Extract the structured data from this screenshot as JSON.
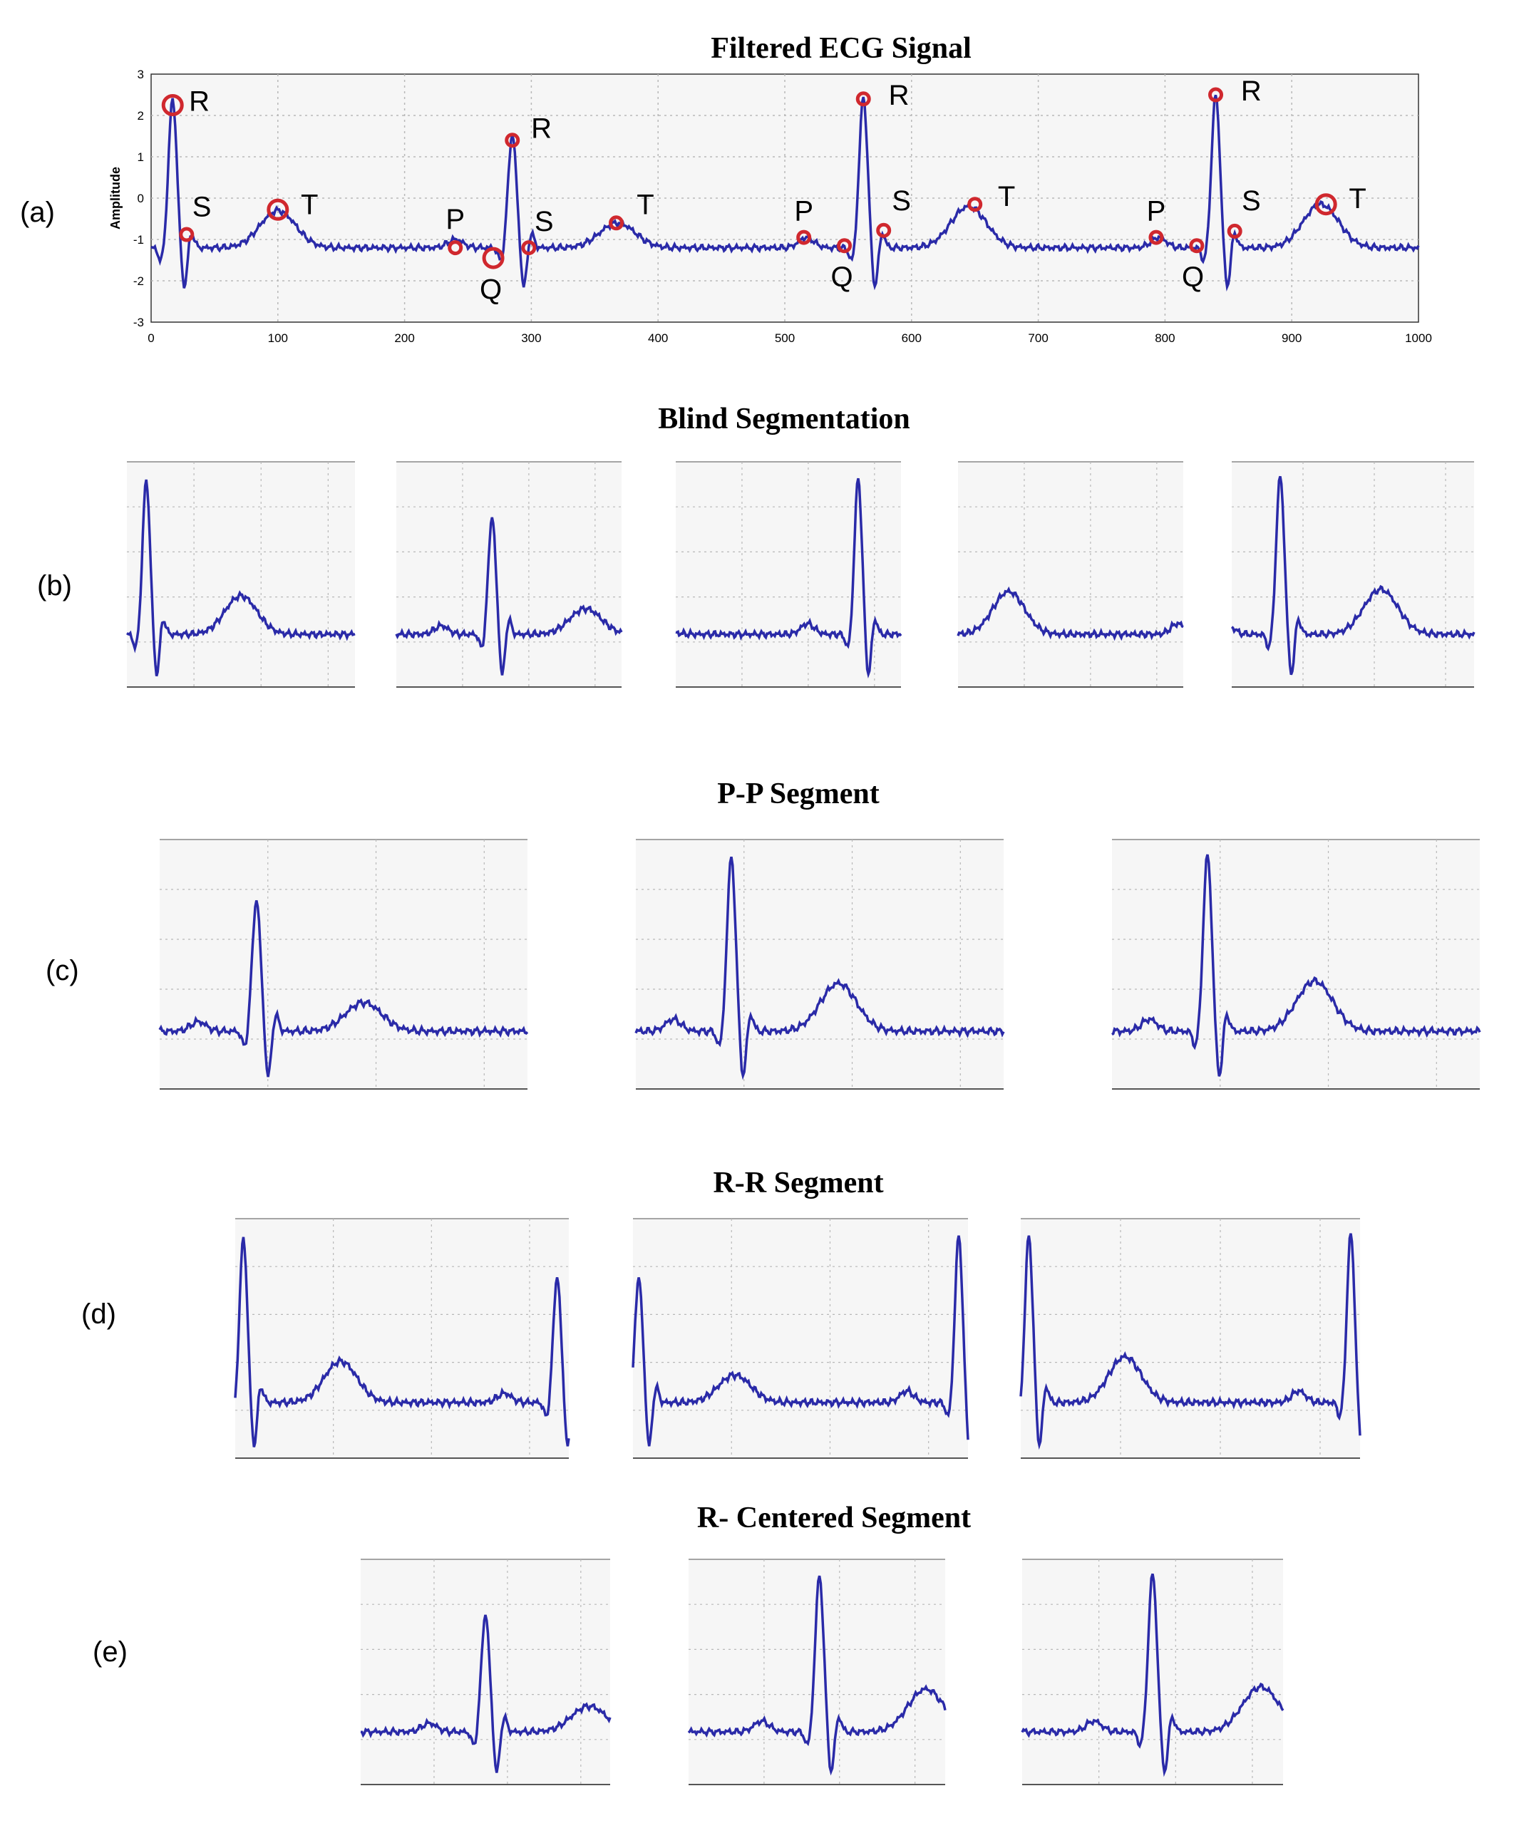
{
  "panel_labels": {
    "a": "(a)",
    "b": "(b)",
    "c": "(c)",
    "d": "(d)",
    "e": "(e)"
  },
  "titles": {
    "a": "Filtered ECG Signal",
    "b": "Blind Segmentation",
    "c": "P-P Segment",
    "d": "R-R Segment",
    "e": "R- Centered Segment"
  },
  "colors": {
    "signal": "#2a2aa8",
    "marker": "#d0282e",
    "grid": "#b8b8b8",
    "plot_bg": "#f6f6f6"
  },
  "chart_data": [
    {
      "id": "a",
      "type": "line",
      "title": "Filtered ECG Signal",
      "xlabel": "",
      "ylabel": "Amplitude",
      "xlim": [
        0,
        1000
      ],
      "ylim": [
        -3,
        3
      ],
      "xticks": [
        0,
        100,
        200,
        300,
        400,
        500,
        600,
        700,
        800,
        900,
        1000
      ],
      "yticks": [
        3,
        2,
        1,
        0,
        -1,
        -2,
        -3
      ],
      "grid": true,
      "beats": [
        {
          "r": 17,
          "amp": 3.6,
          "t_amp": 0.9,
          "p_amp": 0.2
        },
        {
          "r": 285,
          "amp": 2.75,
          "t_amp": 0.6,
          "p_amp": 0.2
        },
        {
          "r": 562,
          "amp": 3.65,
          "t_amp": 1.0,
          "p_amp": 0.25
        },
        {
          "r": 840,
          "amp": 3.7,
          "t_amp": 1.05,
          "p_amp": 0.25
        }
      ],
      "annotations": [
        {
          "label": "R",
          "x": 17,
          "y": 2.25,
          "marker": "circle-large",
          "lx": 38,
          "ly": 2.35
        },
        {
          "label": "S",
          "x": 28,
          "y": -0.88,
          "marker": "circle-small",
          "lx": 40,
          "ly": -0.2
        },
        {
          "label": "T",
          "x": 100,
          "y": -0.28,
          "marker": "circle-large",
          "lx": 125,
          "ly": -0.15
        },
        {
          "label": "P",
          "x": 240,
          "y": -1.2,
          "marker": "circle-small",
          "lx": 240,
          "ly": -0.5
        },
        {
          "label": "Q",
          "x": 270,
          "y": -1.45,
          "marker": "circle-large",
          "lx": 268,
          "ly": -2.2
        },
        {
          "label": "R",
          "x": 285,
          "y": 1.4,
          "marker": "circle-small",
          "lx": 308,
          "ly": 1.7
        },
        {
          "label": "S",
          "x": 298,
          "y": -1.2,
          "marker": "circle-small",
          "lx": 310,
          "ly": -0.55
        },
        {
          "label": "T",
          "x": 367,
          "y": -0.6,
          "marker": "circle-small",
          "lx": 390,
          "ly": -0.15
        },
        {
          "label": "P",
          "x": 515,
          "y": -0.95,
          "marker": "circle-small",
          "lx": 515,
          "ly": -0.3
        },
        {
          "label": "Q",
          "x": 547,
          "y": -1.15,
          "marker": "circle-small",
          "lx": 545,
          "ly": -1.9
        },
        {
          "label": "R",
          "x": 562,
          "y": 2.4,
          "marker": "circle-small",
          "lx": 590,
          "ly": 2.5
        },
        {
          "label": "S",
          "x": 578,
          "y": -0.78,
          "marker": "circle-small",
          "lx": 592,
          "ly": -0.05
        },
        {
          "label": "T",
          "x": 650,
          "y": -0.15,
          "marker": "circle-small",
          "lx": 675,
          "ly": 0.05
        },
        {
          "label": "P",
          "x": 793,
          "y": -0.95,
          "marker": "circle-small",
          "lx": 793,
          "ly": -0.3
        },
        {
          "label": "Q",
          "x": 825,
          "y": -1.15,
          "marker": "circle-small",
          "lx": 822,
          "ly": -1.9
        },
        {
          "label": "R",
          "x": 840,
          "y": 2.5,
          "marker": "circle-small",
          "lx": 868,
          "ly": 2.6
        },
        {
          "label": "S",
          "x": 855,
          "y": -0.8,
          "marker": "circle-small",
          "lx": 868,
          "ly": -0.05
        },
        {
          "label": "T",
          "x": 927,
          "y": -0.15,
          "marker": "circle-large",
          "lx": 952,
          "ly": 0
        }
      ]
    },
    {
      "id": "b",
      "type": "line",
      "title": "Blind Segmentation",
      "segmentation": "fixed 200-sample windows",
      "windows": [
        [
          0,
          200
        ],
        [
          200,
          400
        ],
        [
          400,
          600
        ],
        [
          600,
          800
        ],
        [
          800,
          1000
        ]
      ]
    },
    {
      "id": "c",
      "type": "line",
      "title": "P-P Segment",
      "segmentation": "from one P wave to the next",
      "windows": [
        [
          210,
          495
        ],
        [
          488,
          773
        ],
        [
          766,
          1051
        ]
      ]
    },
    {
      "id": "d",
      "type": "line",
      "title": "R-R Segment",
      "segmentation": "from one R peak to the next",
      "windows": [
        [
          10,
          295
        ],
        [
          280,
          570
        ],
        [
          555,
          848
        ]
      ]
    },
    {
      "id": "e",
      "type": "line",
      "title": "R- Centered Segment",
      "segmentation": "windows centred on each R peak",
      "windows": [
        [
          185,
          385
        ],
        [
          460,
          660
        ],
        [
          740,
          940
        ]
      ]
    }
  ]
}
